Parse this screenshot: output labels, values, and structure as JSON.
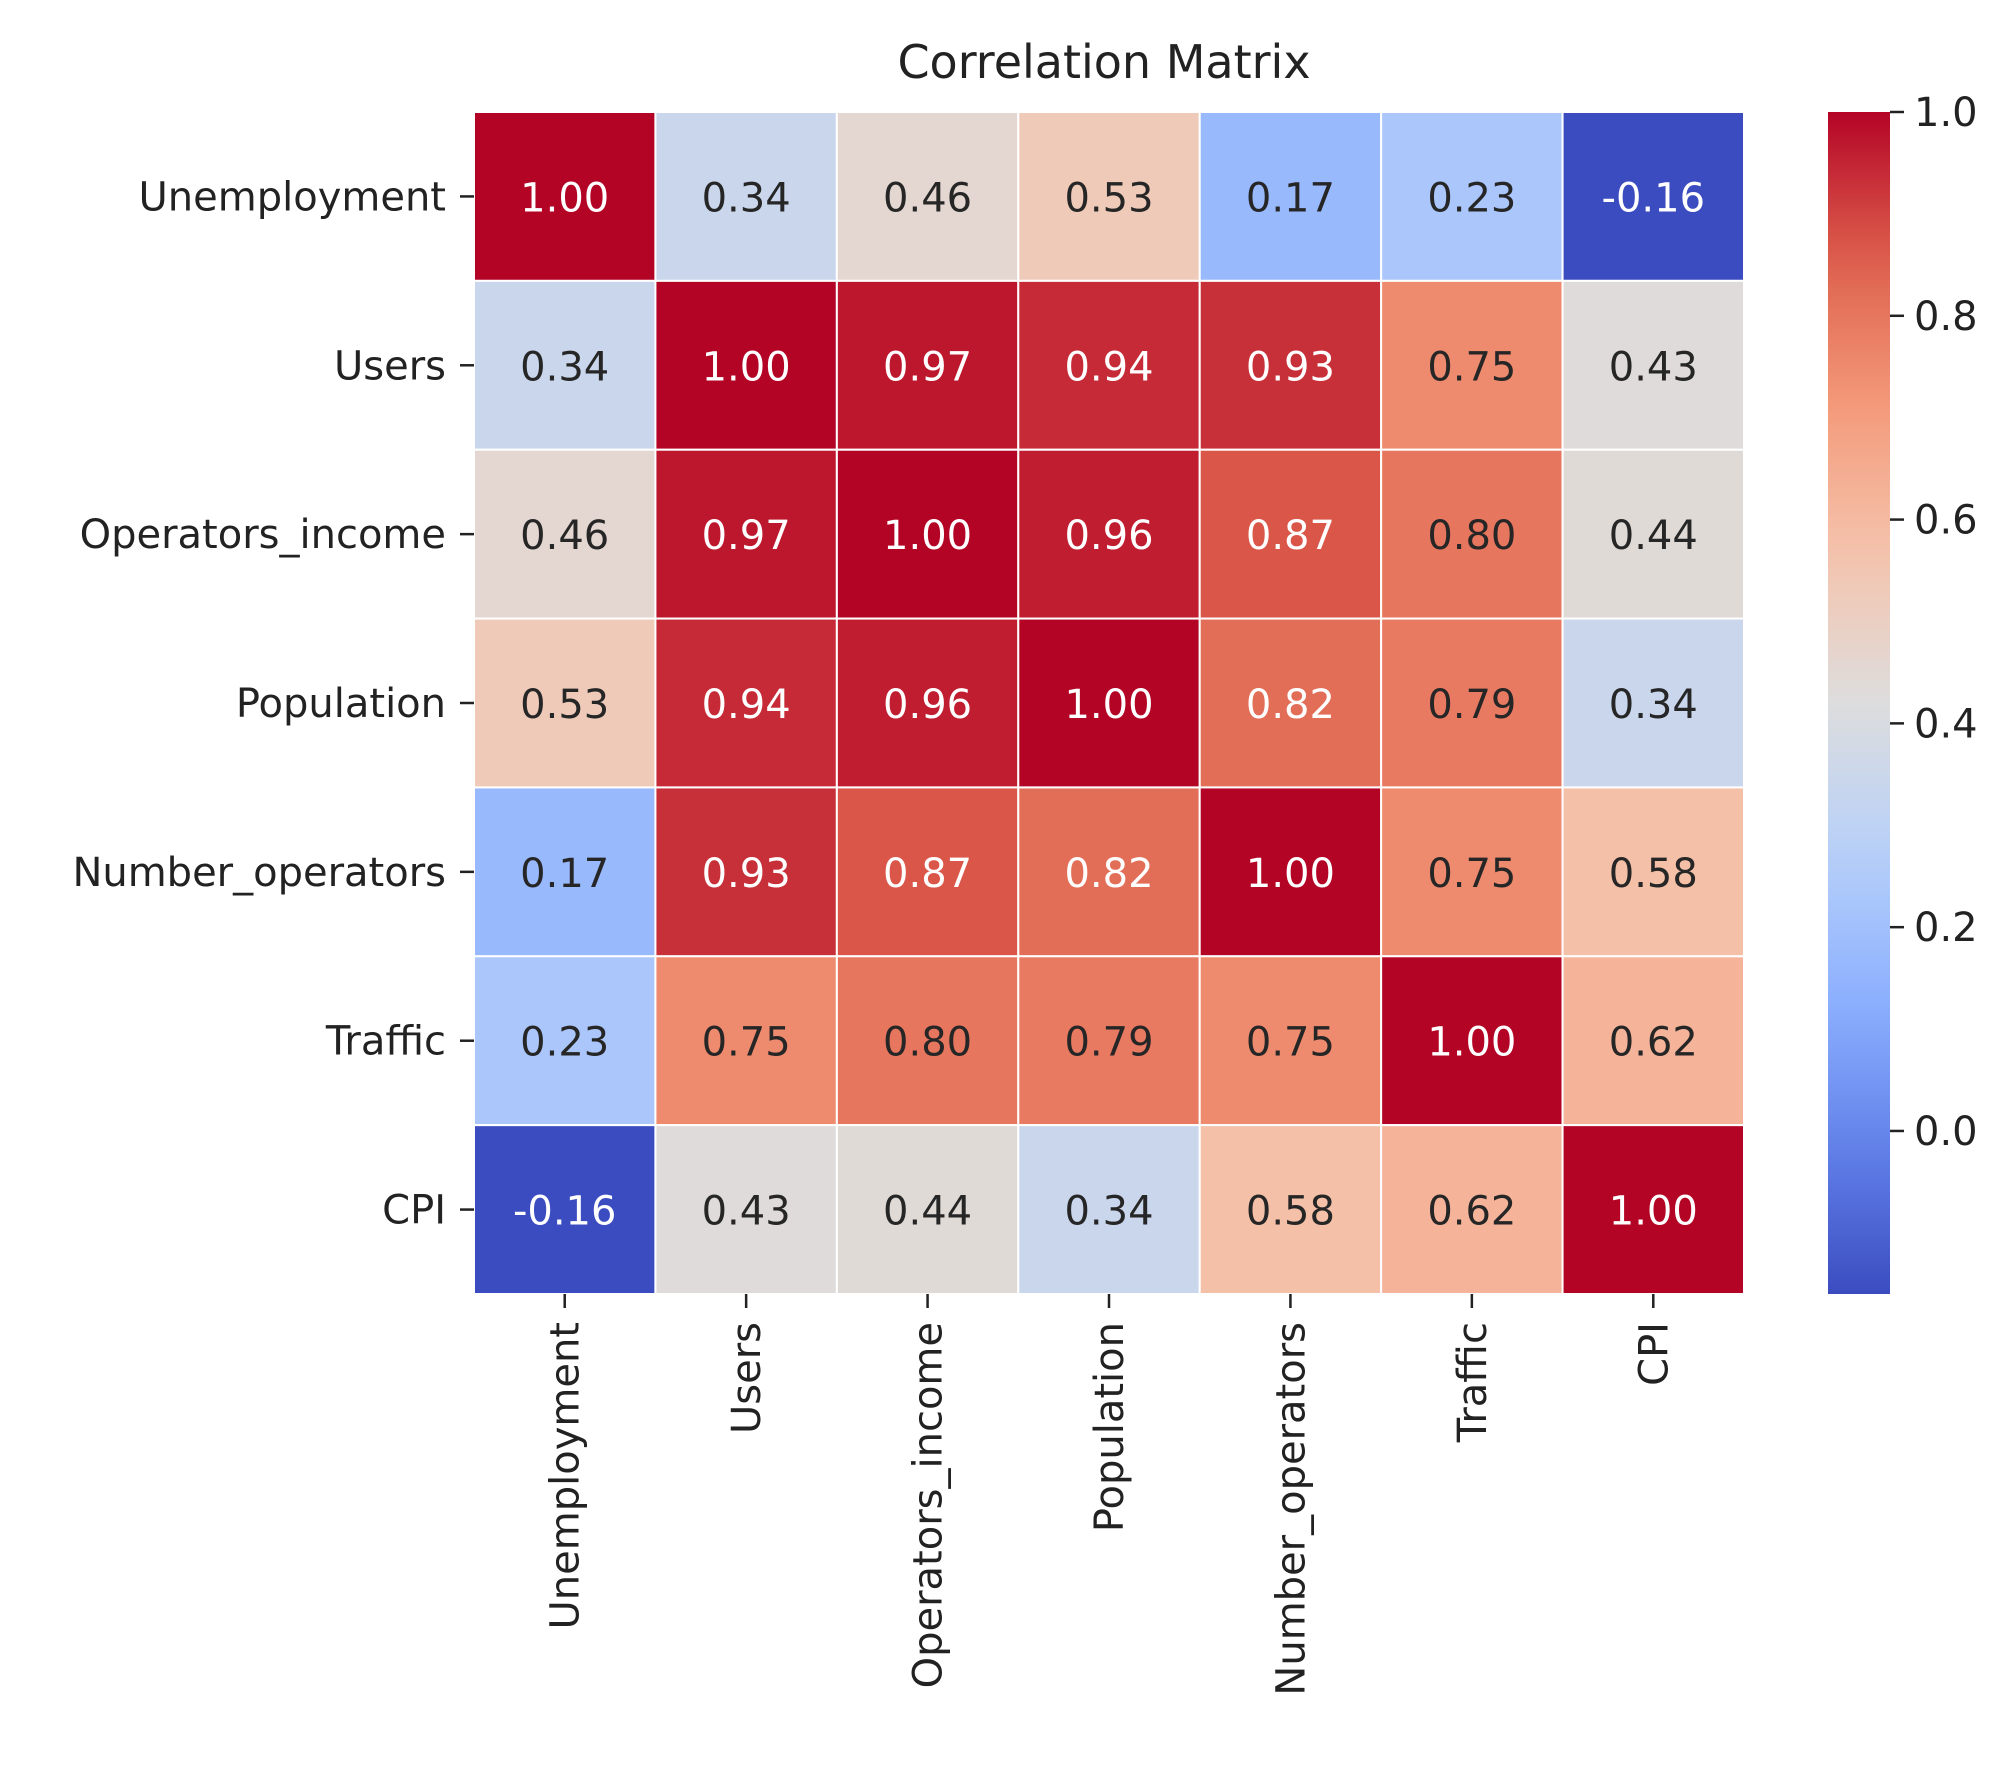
{
  "chart_data": {
    "type": "heatmap",
    "title": "Correlation Matrix",
    "xlabel": "",
    "ylabel": "",
    "row_labels": [
      "Unemployment",
      "Users",
      "Operators_income",
      "Population",
      "Number_operators",
      "Traffic",
      "CPI"
    ],
    "col_labels": [
      "Unemployment",
      "Users",
      "Operators_income",
      "Population",
      "Number_operators",
      "Traffic",
      "CPI"
    ],
    "values": [
      [
        1.0,
        0.34,
        0.46,
        0.53,
        0.17,
        0.23,
        -0.16
      ],
      [
        0.34,
        1.0,
        0.97,
        0.94,
        0.93,
        0.75,
        0.43
      ],
      [
        0.46,
        0.97,
        1.0,
        0.96,
        0.87,
        0.8,
        0.44
      ],
      [
        0.53,
        0.94,
        0.96,
        1.0,
        0.82,
        0.79,
        0.34
      ],
      [
        0.17,
        0.93,
        0.87,
        0.82,
        1.0,
        0.75,
        0.58
      ],
      [
        0.23,
        0.75,
        0.8,
        0.79,
        0.75,
        1.0,
        0.62
      ],
      [
        -0.16,
        0.43,
        0.44,
        0.34,
        0.58,
        0.62,
        1.0
      ]
    ],
    "annotation_format": "0.00",
    "colormap": "coolwarm",
    "colorbar": {
      "range": [
        -0.16,
        1.0
      ],
      "ticks": [
        0.0,
        0.2,
        0.4,
        0.6,
        0.8,
        1.0
      ],
      "tick_labels": [
        "0.0",
        "0.2",
        "0.4",
        "0.6",
        "0.8",
        "1.0"
      ]
    },
    "grid": false,
    "legend": "colorbar-right"
  }
}
